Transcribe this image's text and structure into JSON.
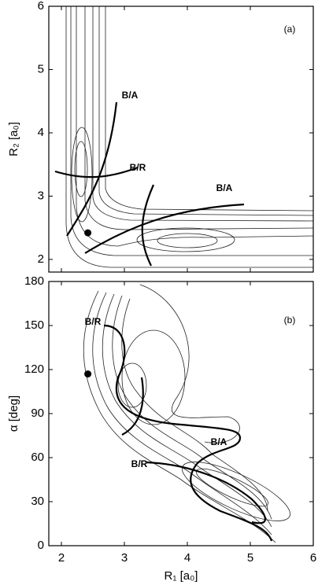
{
  "chart_data": [
    {
      "type": "contour",
      "ylabel": "R₂ [a₀]",
      "panel_label": "(a)",
      "xlim": [
        1.8,
        6
      ],
      "xticks": [
        2,
        3,
        4,
        5,
        6
      ],
      "ylim": [
        1.8,
        6
      ],
      "yticks": [
        2,
        3,
        4,
        5,
        6
      ],
      "annotations": [
        "B/A",
        "B/R",
        "B/A"
      ],
      "x": [
        2.42
      ],
      "values": [
        2.42
      ],
      "color": "#000000"
    },
    {
      "type": "contour",
      "ylabel": "α [deg]",
      "xlabel": "R₁ [a₀]",
      "panel_label": "(b)",
      "xlim": [
        1.8,
        6
      ],
      "xticks": [
        2,
        3,
        4,
        5,
        6
      ],
      "ylim": [
        0,
        180
      ],
      "yticks": [
        0,
        30,
        60,
        90,
        120,
        150,
        180
      ],
      "annotations": [
        "B/R",
        "B/A",
        "B/R"
      ],
      "x": [
        2.42
      ],
      "values": [
        117
      ],
      "color": "#000000"
    }
  ]
}
